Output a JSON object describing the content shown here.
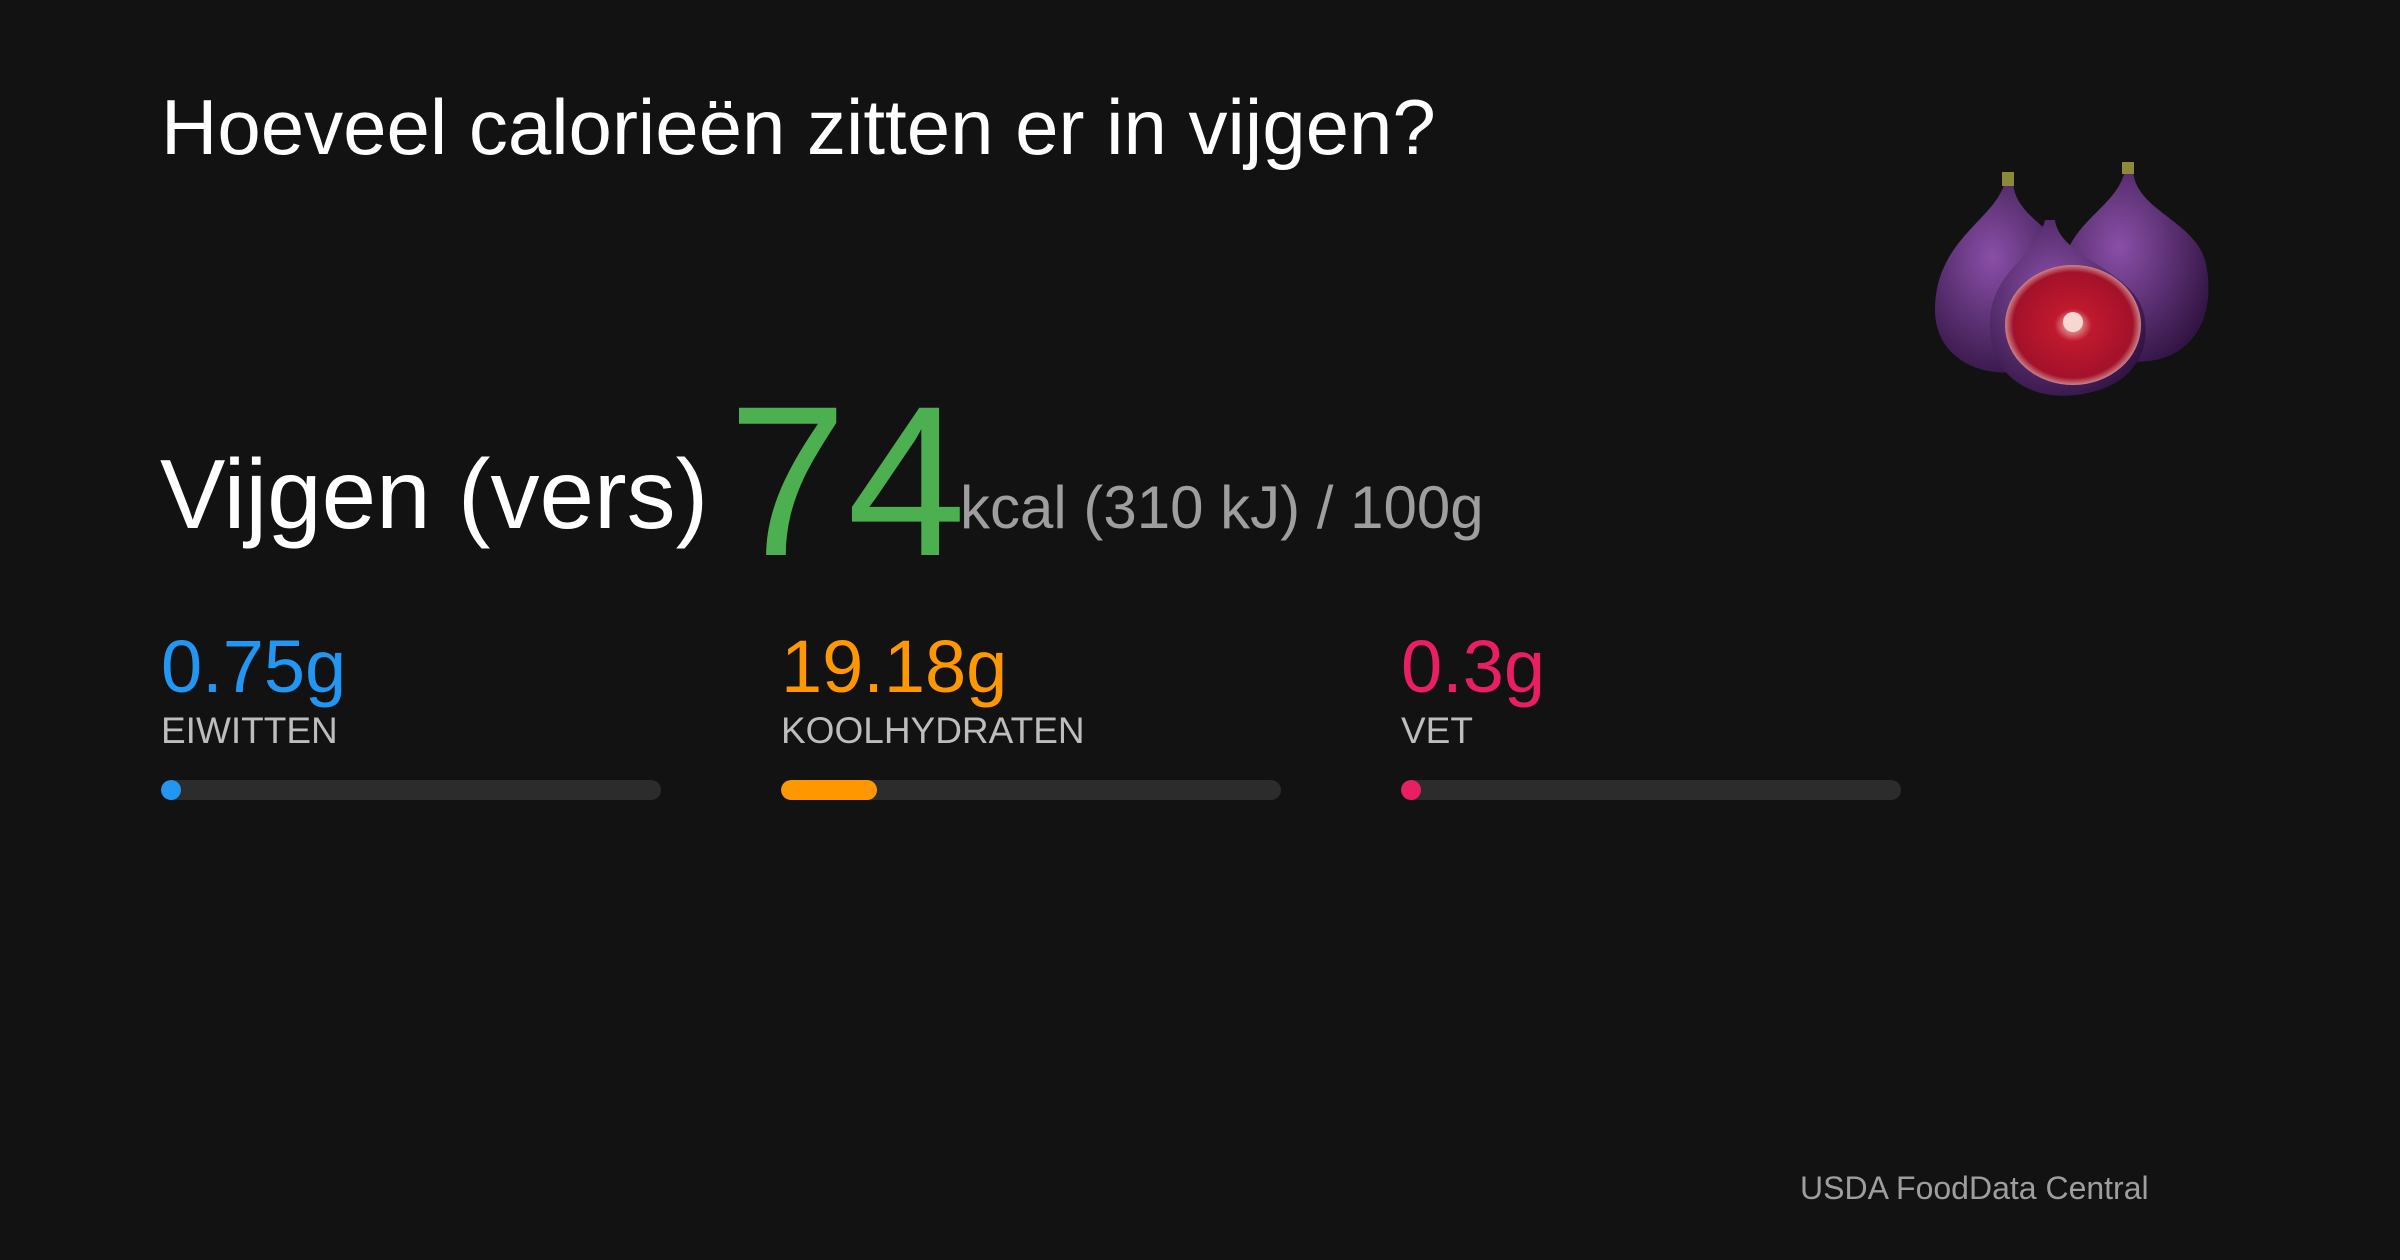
{
  "header": {
    "title": "Hoeveel calorieën zitten er in vijgen?"
  },
  "food": {
    "name": "Vijgen (vers)",
    "kcal": 74,
    "energy_note": "kcal (310 kJ) / 100g"
  },
  "macros": [
    {
      "value": 0.75,
      "value_label": "0.75g",
      "label": "EIWITTEN",
      "color": "#2196f3"
    },
    {
      "value": 19.18,
      "value_label": "19.18g",
      "label": "KOOLHYDRATEN",
      "color": "#ff9800"
    },
    {
      "value": 0.3,
      "value_label": "0.3g",
      "label": "VET",
      "color": "#e91e63"
    }
  ],
  "source": "USDA FoodData Central"
}
